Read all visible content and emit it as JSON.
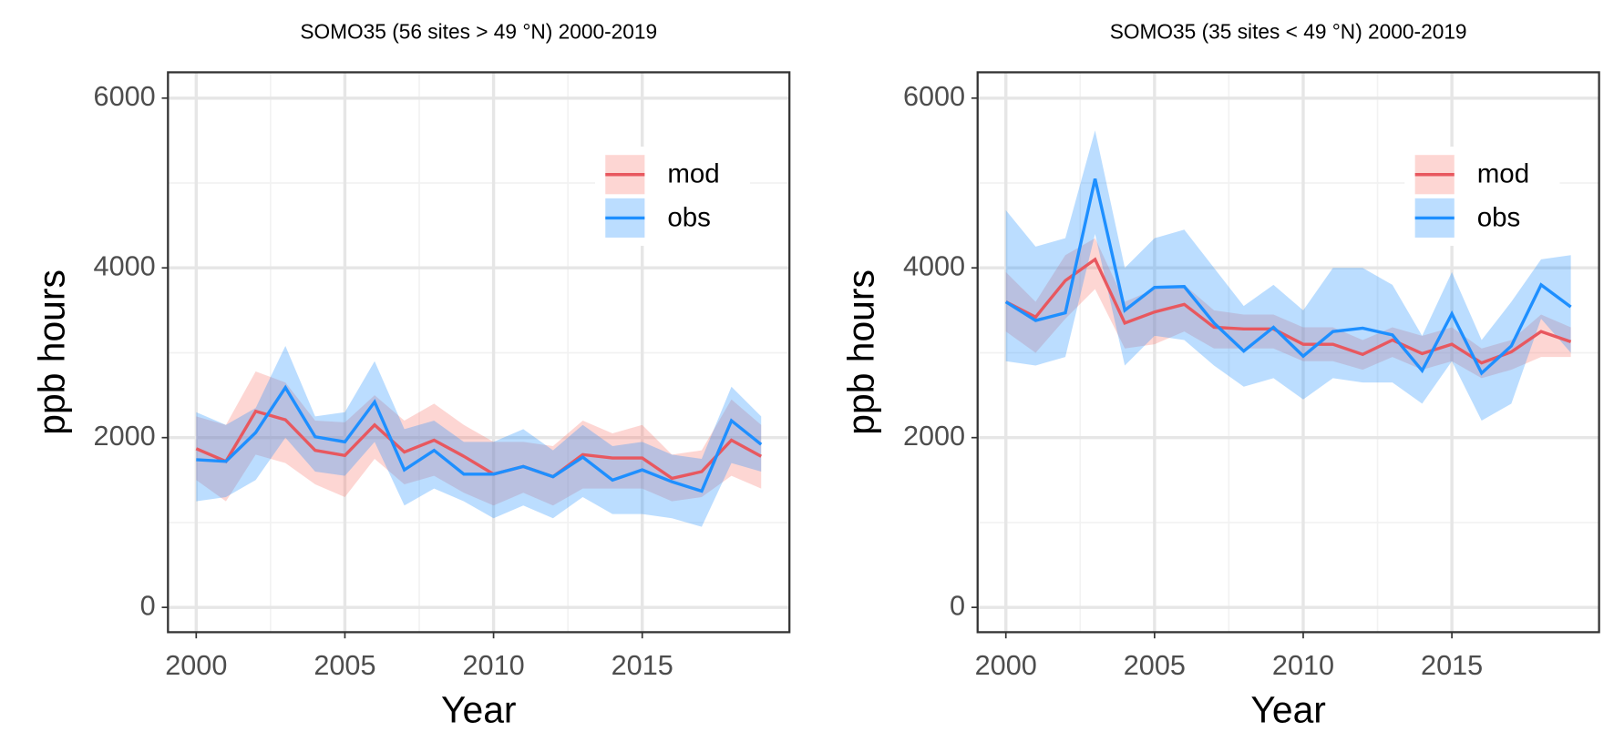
{
  "chart_data": [
    {
      "type": "line",
      "title": "SOMO35 (56 sites > 49 °N) 2000-2019",
      "x_label": "Year",
      "y_label": "ppb hours",
      "x": [
        2000,
        2001,
        2002,
        2003,
        2004,
        2005,
        2006,
        2007,
        2008,
        2009,
        2010,
        2011,
        2012,
        2013,
        2014,
        2015,
        2016,
        2017,
        2018,
        2019
      ],
      "xlim": [
        1999.05,
        2019.95
      ],
      "xticks": [
        2000,
        2005,
        2010,
        2015
      ],
      "ylim": [
        -292,
        6304
      ],
      "yticks": [
        0,
        2000,
        4000,
        6000
      ],
      "grid": true,
      "legend_position": "top-right",
      "series": [
        {
          "name": "mod",
          "color": "#e8585f",
          "band_color": "#f8766d",
          "values": [
            1870,
            1720,
            2310,
            2210,
            1850,
            1790,
            2150,
            1830,
            1970,
            1780,
            1570,
            1660,
            1540,
            1800,
            1760,
            1760,
            1520,
            1600,
            1970,
            1780
          ],
          "upper": [
            2250,
            2150,
            2780,
            2650,
            2200,
            2180,
            2500,
            2200,
            2400,
            2150,
            1950,
            1950,
            1900,
            2200,
            2050,
            2150,
            1800,
            1850,
            2450,
            2150
          ],
          "lower": [
            1500,
            1250,
            1800,
            1700,
            1450,
            1300,
            1750,
            1450,
            1550,
            1350,
            1200,
            1350,
            1200,
            1400,
            1400,
            1400,
            1250,
            1300,
            1550,
            1400
          ]
        },
        {
          "name": "obs",
          "color": "#1e8fff",
          "band_color": "#1e8fff",
          "values": [
            1740,
            1720,
            2060,
            2590,
            2010,
            1950,
            2420,
            1620,
            1850,
            1570,
            1570,
            1660,
            1540,
            1770,
            1500,
            1620,
            1480,
            1370,
            2200,
            1920
          ],
          "upper": [
            2300,
            2150,
            2350,
            3080,
            2250,
            2300,
            2900,
            2100,
            2200,
            1950,
            1950,
            2100,
            1850,
            2150,
            1900,
            1950,
            1800,
            1750,
            2600,
            2250
          ],
          "lower": [
            1250,
            1300,
            1500,
            2000,
            1600,
            1550,
            1950,
            1200,
            1400,
            1250,
            1050,
            1200,
            1050,
            1300,
            1100,
            1100,
            1050,
            950,
            1700,
            1600
          ]
        }
      ]
    },
    {
      "type": "line",
      "title": "SOMO35 (35 sites < 49 °N) 2000-2019",
      "x_label": "Year",
      "y_label": "ppb hours",
      "x": [
        2000,
        2001,
        2002,
        2003,
        2004,
        2005,
        2006,
        2007,
        2008,
        2009,
        2010,
        2011,
        2012,
        2013,
        2014,
        2015,
        2016,
        2017,
        2018,
        2019
      ],
      "xlim": [
        1999.05,
        2019.95
      ],
      "xticks": [
        2000,
        2005,
        2010,
        2015
      ],
      "ylim": [
        -292,
        6304
      ],
      "yticks": [
        0,
        2000,
        4000,
        6000
      ],
      "grid": true,
      "legend_position": "top-right",
      "series": [
        {
          "name": "mod",
          "color": "#e8585f",
          "band_color": "#f8766d",
          "values": [
            3600,
            3420,
            3850,
            4100,
            3350,
            3480,
            3570,
            3300,
            3280,
            3280,
            3100,
            3100,
            2980,
            3150,
            2990,
            3100,
            2880,
            3010,
            3250,
            3130
          ],
          "upper": [
            3950,
            3600,
            4150,
            4350,
            3600,
            3750,
            3800,
            3500,
            3450,
            3450,
            3300,
            3300,
            3150,
            3300,
            3200,
            3300,
            3050,
            3150,
            3450,
            3300
          ],
          "lower": [
            3250,
            3000,
            3400,
            3750,
            3050,
            3100,
            3250,
            3050,
            3050,
            3050,
            2900,
            2900,
            2800,
            2950,
            2800,
            2900,
            2700,
            2800,
            2950,
            2950
          ]
        },
        {
          "name": "obs",
          "color": "#1e8fff",
          "band_color": "#1e8fff",
          "values": [
            3600,
            3380,
            3470,
            5050,
            3500,
            3770,
            3780,
            3350,
            3020,
            3300,
            2960,
            3250,
            3290,
            3210,
            2790,
            3460,
            2760,
            3080,
            3800,
            3540
          ],
          "upper": [
            4680,
            4250,
            4350,
            5620,
            4000,
            4350,
            4450,
            4000,
            3550,
            3800,
            3500,
            4000,
            4000,
            3800,
            3200,
            3950,
            3150,
            3600,
            4100,
            4150
          ],
          "lower": [
            2900,
            2850,
            2950,
            4400,
            2850,
            3200,
            3150,
            2850,
            2600,
            2700,
            2450,
            2700,
            2650,
            2650,
            2400,
            2900,
            2200,
            2400,
            3400,
            3000
          ]
        }
      ]
    }
  ]
}
